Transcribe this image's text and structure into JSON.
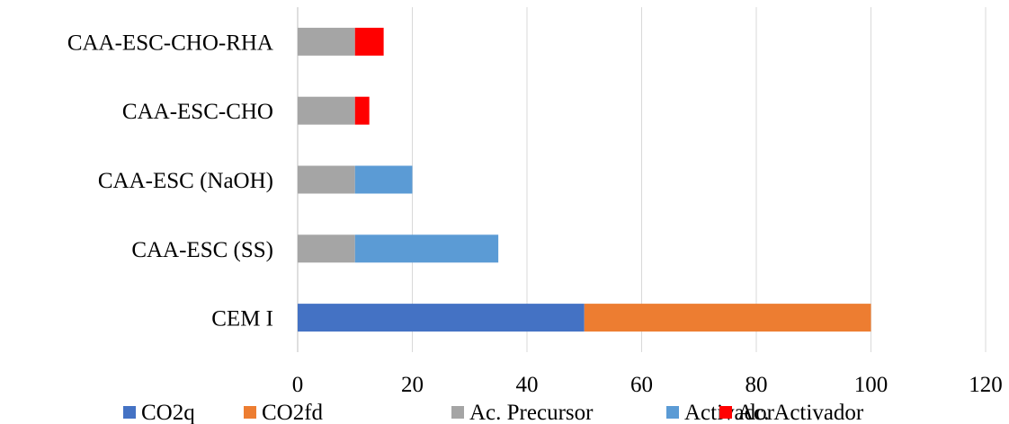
{
  "chart_data": {
    "type": "bar",
    "orientation": "horizontal",
    "stacked": true,
    "categories": [
      "CEM I",
      "CAA-ESC (SS)",
      "CAA-ESC (NaOH)",
      "CAA-ESC-CHO",
      "CAA-ESC-CHO-RHA"
    ],
    "series": [
      {
        "name": "CO2q",
        "color": "#4472C4",
        "values": [
          50,
          0,
          0,
          0,
          0
        ]
      },
      {
        "name": "CO2fd",
        "color": "#ED7D31",
        "values": [
          50,
          0,
          0,
          0,
          0
        ]
      },
      {
        "name": "Ac. Precursor",
        "color": "#A5A5A5",
        "values": [
          0,
          10,
          10,
          10,
          10
        ]
      },
      {
        "name": "Activador",
        "color": "#5B9BD5",
        "values": [
          0,
          25,
          10,
          0,
          0
        ]
      },
      {
        "name": "Ac. Activador",
        "color": "#FF0000",
        "values": [
          0,
          0,
          0,
          2.5,
          5
        ]
      }
    ],
    "xlim": [
      0,
      120
    ],
    "xticks": [
      0,
      20,
      40,
      60,
      80,
      100,
      120
    ],
    "xtick_labels": [
      "0",
      "20",
      "40",
      "60",
      "80",
      "100",
      "120"
    ],
    "grid": true,
    "legend_position": "bottom",
    "title": "",
    "xlabel": "",
    "ylabel": ""
  }
}
